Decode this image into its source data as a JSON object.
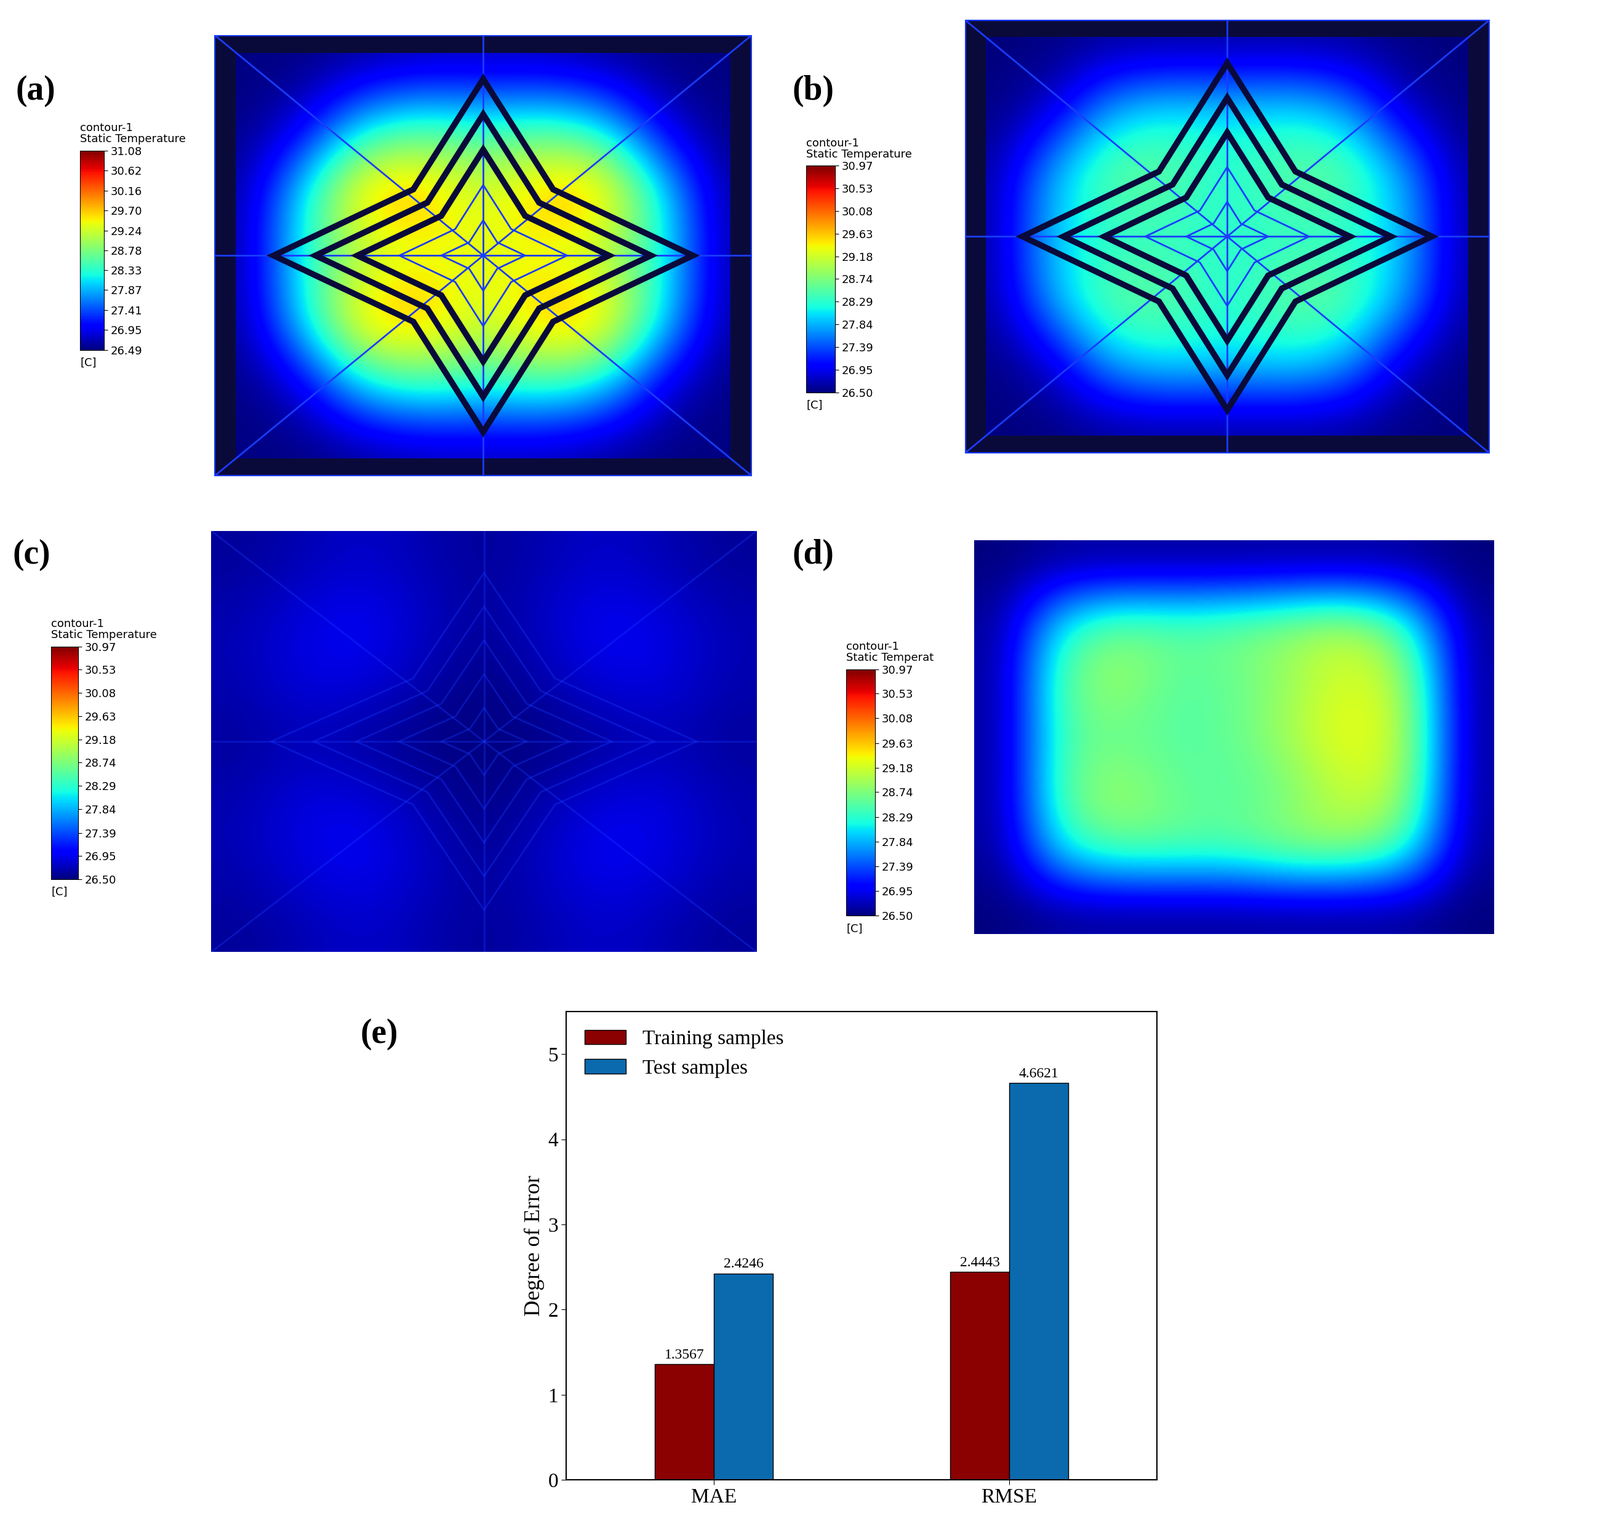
{
  "chart_data": [
    {
      "type": "heatmap",
      "panel": "(a)",
      "tick_labels": false,
      "colorbar_title": [
        "contour-1",
        "Static Temperature"
      ],
      "colorbar_unit": "[C]",
      "cells": [
        [
          26.5,
          26.5,
          26.6,
          26.7,
          26.7,
          26.7,
          26.6,
          26.5,
          26.5
        ],
        [
          26.5,
          26.9,
          28.2,
          28.6,
          28.4,
          28.6,
          28.2,
          26.9,
          26.5
        ],
        [
          26.6,
          28.2,
          29.9,
          29.9,
          29.2,
          29.9,
          29.9,
          28.2,
          26.6
        ],
        [
          26.6,
          28.3,
          29.0,
          29.3,
          29.4,
          29.3,
          29.0,
          28.3,
          26.6
        ],
        [
          26.6,
          28.2,
          29.9,
          29.9,
          29.2,
          29.9,
          29.9,
          28.2,
          26.6
        ],
        [
          26.5,
          26.9,
          28.2,
          28.6,
          28.4,
          28.6,
          28.2,
          26.9,
          26.5
        ],
        [
          26.5,
          26.5,
          26.6,
          26.7,
          26.7,
          26.7,
          26.6,
          26.5,
          26.5
        ]
      ],
      "colorbar": {
        "range": [
          26.49,
          31.08
        ],
        "ticks": [
          26.49,
          26.95,
          27.41,
          27.87,
          28.33,
          28.78,
          29.24,
          {
            "value": 29.7,
            "label": "29.70"
          },
          30.16,
          30.62,
          31.08
        ]
      }
    },
    {
      "type": "heatmap",
      "panel": "(b)",
      "tick_labels": false,
      "colorbar_title": [
        "contour-1",
        "Static Temperature"
      ],
      "colorbar_unit": "[C]",
      "cells": [
        [
          26.5,
          26.5,
          26.6,
          26.6,
          26.6,
          26.6,
          26.6,
          26.5,
          26.5
        ],
        [
          26.5,
          26.8,
          27.9,
          28.2,
          28.1,
          28.2,
          27.9,
          26.8,
          26.5
        ],
        [
          26.6,
          27.9,
          28.7,
          28.6,
          28.2,
          28.6,
          28.7,
          27.9,
          26.6
        ],
        [
          26.6,
          28.0,
          28.2,
          28.3,
          28.3,
          28.3,
          28.2,
          28.0,
          26.6
        ],
        [
          26.6,
          27.9,
          28.7,
          28.6,
          28.2,
          28.6,
          28.7,
          27.9,
          26.6
        ],
        [
          26.5,
          26.8,
          27.9,
          28.2,
          28.1,
          28.2,
          27.9,
          26.8,
          26.5
        ],
        [
          26.5,
          26.5,
          26.6,
          26.6,
          26.6,
          26.6,
          26.6,
          26.5,
          26.5
        ]
      ],
      "colorbar": {
        "range": [
          26.5,
          30.97
        ],
        "ticks": [
          {
            "value": 26.5,
            "label": "26.50"
          },
          26.95,
          27.39,
          27.84,
          28.29,
          28.74,
          29.18,
          29.63,
          30.08,
          30.53,
          30.97
        ]
      }
    },
    {
      "type": "heatmap",
      "panel": "(c)",
      "tick_labels": false,
      "colorbar_title": [
        "contour-1",
        "Static Temperature"
      ],
      "colorbar_unit": "[C]",
      "cells": [
        [
          26.6,
          26.7,
          26.8,
          26.7,
          26.6,
          26.7,
          26.8,
          26.7,
          26.6
        ],
        [
          26.7,
          26.9,
          27.0,
          26.8,
          26.6,
          26.8,
          27.0,
          26.9,
          26.7
        ],
        [
          26.7,
          26.9,
          26.9,
          26.7,
          26.5,
          26.7,
          26.9,
          26.9,
          26.7
        ],
        [
          26.6,
          26.7,
          26.6,
          26.5,
          26.5,
          26.5,
          26.6,
          26.7,
          26.6
        ],
        [
          26.7,
          26.9,
          26.9,
          26.7,
          26.5,
          26.7,
          26.9,
          26.9,
          26.7
        ],
        [
          26.7,
          26.9,
          27.0,
          26.8,
          26.6,
          26.8,
          27.0,
          26.9,
          26.7
        ],
        [
          26.6,
          26.7,
          26.8,
          26.7,
          26.6,
          26.7,
          26.8,
          26.7,
          26.6
        ]
      ],
      "colorbar": {
        "range": [
          26.5,
          30.97
        ],
        "ticks": [
          {
            "value": 26.5,
            "label": "26.50"
          },
          26.95,
          27.39,
          27.84,
          28.29,
          28.74,
          29.18,
          29.63,
          30.08,
          30.53,
          30.97
        ]
      }
    },
    {
      "type": "heatmap",
      "panel": "(d)",
      "tick_labels": false,
      "colorbar_title": [
        "contour-1",
        "Static Temperat"
      ],
      "colorbar_unit": "[C]",
      "cells": [
        [
          26.5,
          26.6,
          26.6,
          26.6,
          26.6,
          26.6,
          26.6,
          26.6,
          26.5
        ],
        [
          26.6,
          28.2,
          28.7,
          28.6,
          28.7,
          28.9,
          29.1,
          28.4,
          26.6
        ],
        [
          26.6,
          28.6,
          29.0,
          28.5,
          28.6,
          28.9,
          29.3,
          29.0,
          26.6
        ],
        [
          26.6,
          28.5,
          28.6,
          28.5,
          28.6,
          29.0,
          29.4,
          29.1,
          26.6
        ],
        [
          26.6,
          28.6,
          29.0,
          28.6,
          28.5,
          28.7,
          29.2,
          29.0,
          26.6
        ],
        [
          26.6,
          28.2,
          28.6,
          28.6,
          28.6,
          28.9,
          28.9,
          28.4,
          26.6
        ],
        [
          26.5,
          26.6,
          26.6,
          26.6,
          26.6,
          26.6,
          26.6,
          26.6,
          26.5
        ]
      ],
      "colorbar": {
        "range": [
          26.5,
          30.97
        ],
        "ticks": [
          {
            "value": 26.5,
            "label": "26.50"
          },
          26.95,
          27.39,
          27.84,
          28.29,
          28.74,
          29.18,
          29.63,
          30.08,
          30.53,
          30.97
        ]
      }
    },
    {
      "type": "bar",
      "panel": "(e)",
      "ylabel": "Degree of Error",
      "categories": [
        "MAE",
        "RMSE"
      ],
      "series": [
        {
          "name": "Training samples",
          "color": "#8b0000",
          "values": [
            1.3567,
            2.4443
          ]
        },
        {
          "name": "Test samples",
          "color": "#0a6aad",
          "values": [
            2.4246,
            4.6621
          ]
        }
      ],
      "ylim": [
        0,
        5.5
      ],
      "yticks": [
        0,
        1,
        2,
        3,
        4,
        5
      ],
      "legend": "upper left",
      "data_labels": true
    }
  ]
}
